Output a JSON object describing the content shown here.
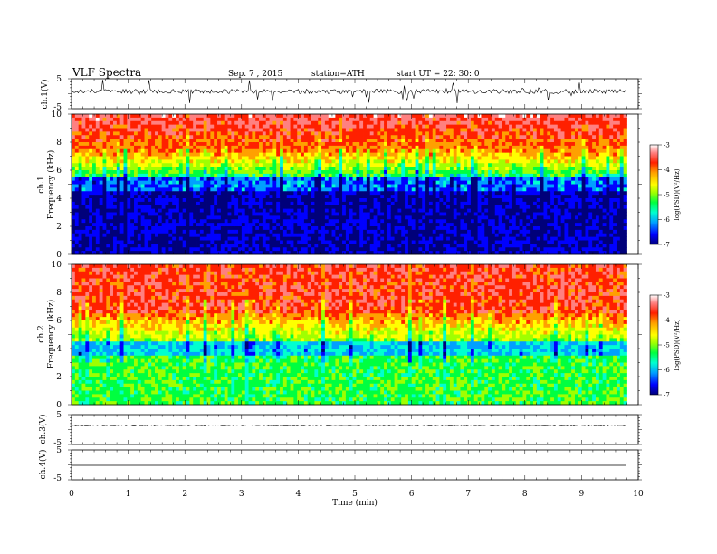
{
  "header": {
    "title": "VLF  Spectra",
    "date": "Sep. 7  , 2015",
    "station": "station=ATH",
    "start": "start  UT  =    22: 30: 0"
  },
  "chart_data": [
    {
      "type": "line",
      "panel": "ch1-waveform",
      "ylabel": "ch.1(V)",
      "ylim": [
        -5,
        5
      ],
      "yticks": [
        "5",
        "-5"
      ],
      "description_of_signal": "noisy impulsive waveform around 0 V with spikes"
    },
    {
      "type": "heatmap",
      "panel": "ch1-spectrogram",
      "ylabel": "ch.1\nFrequency (kHz)",
      "ylabel_line1": "ch.1",
      "ylabel_line2": "Frequency  (kHz)",
      "ylim": [
        0,
        10
      ],
      "yticks": [
        "0",
        "2",
        "4",
        "6",
        "8",
        "10"
      ],
      "colorbar": {
        "label": "log(PSD)(V²/Hz)",
        "range": [
          -7,
          -3
        ],
        "ticks": [
          "-3",
          "-4",
          "-5",
          "-6",
          "-7"
        ]
      }
    },
    {
      "type": "heatmap",
      "panel": "ch2-spectrogram",
      "ylabel_line1": "ch.2",
      "ylabel_line2": "Frequency  (kHz)",
      "ylim": [
        0,
        10
      ],
      "yticks": [
        "0",
        "2",
        "4",
        "6",
        "8",
        "10"
      ],
      "colorbar": {
        "label": "log(PSD)(V²/Hz)",
        "range": [
          -7,
          -3
        ],
        "ticks": [
          "-3",
          "-4",
          "-5",
          "-6",
          "-7"
        ]
      }
    },
    {
      "type": "line",
      "panel": "ch3-waveform",
      "ylabel": "ch.3(V)",
      "ylim": [
        -5,
        5
      ],
      "yticks": [
        "5",
        "-5"
      ]
    },
    {
      "type": "line",
      "panel": "ch4-waveform",
      "ylabel": "ch.4(V)",
      "ylim": [
        -5,
        5
      ],
      "yticks": [
        "5",
        "-5"
      ]
    }
  ],
  "xaxis": {
    "xlabel": "Time  (min)",
    "xlim": [
      0,
      10
    ],
    "ticks": [
      "0",
      "1",
      "2",
      "3",
      "4",
      "5",
      "6",
      "7",
      "8",
      "9",
      "10"
    ],
    "data_end": 9.8
  },
  "colors": {
    "scale": [
      "#00007a",
      "#0000ff",
      "#00a0ff",
      "#00ffd0",
      "#00ff40",
      "#a0ff00",
      "#ffff00",
      "#ffa000",
      "#ff2000",
      "#ff8080",
      "#ffffff"
    ]
  }
}
